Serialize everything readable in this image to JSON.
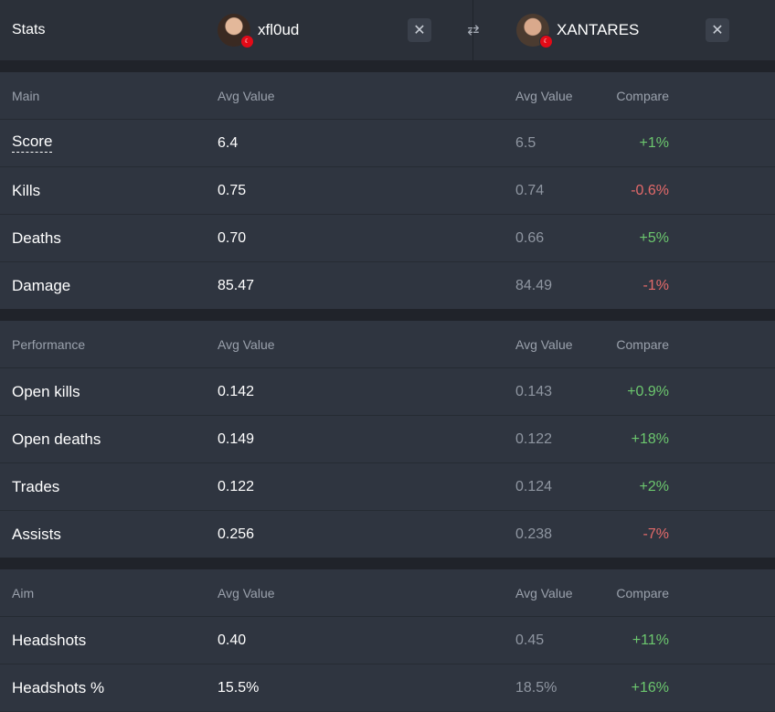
{
  "header": {
    "stats_label": "Stats",
    "player1": {
      "name": "xfl0ud",
      "flag": "☾"
    },
    "player2": {
      "name": "XANTARES",
      "flag": "☾"
    },
    "close_glyph": "✕",
    "swap_glyph": "⇄"
  },
  "sections": [
    {
      "title": "Main",
      "col_avg1": "Avg Value",
      "col_avg2": "Avg Value",
      "col_compare": "Compare",
      "rows": [
        {
          "label": "Score",
          "v1": "6.4",
          "v2": "6.5",
          "compare": "+1%",
          "trend": "pos"
        },
        {
          "label": "Kills",
          "v1": "0.75",
          "v2": "0.74",
          "compare": "-0.6%",
          "trend": "neg"
        },
        {
          "label": "Deaths",
          "v1": "0.70",
          "v2": "0.66",
          "compare": "+5%",
          "trend": "pos"
        },
        {
          "label": "Damage",
          "v1": "85.47",
          "v2": "84.49",
          "compare": "-1%",
          "trend": "neg"
        }
      ]
    },
    {
      "title": "Performance",
      "col_avg1": "Avg Value",
      "col_avg2": "Avg Value",
      "col_compare": "Compare",
      "rows": [
        {
          "label": "Open kills",
          "v1": "0.142",
          "v2": "0.143",
          "compare": "+0.9%",
          "trend": "pos"
        },
        {
          "label": "Open deaths",
          "v1": "0.149",
          "v2": "0.122",
          "compare": "+18%",
          "trend": "pos"
        },
        {
          "label": "Trades",
          "v1": "0.122",
          "v2": "0.124",
          "compare": "+2%",
          "trend": "pos"
        },
        {
          "label": "Assists",
          "v1": "0.256",
          "v2": "0.238",
          "compare": "-7%",
          "trend": "neg"
        }
      ]
    },
    {
      "title": "Aim",
      "col_avg1": "Avg Value",
      "col_avg2": "Avg Value",
      "col_compare": "Compare",
      "rows": [
        {
          "label": "Headshots",
          "v1": "0.40",
          "v2": "0.45",
          "compare": "+11%",
          "trend": "pos"
        },
        {
          "label": "Headshots %",
          "v1": "15.5%",
          "v2": "18.5%",
          "compare": "+16%",
          "trend": "pos"
        }
      ]
    }
  ],
  "colors": {
    "positive": "#6cc76e",
    "negative": "#e46a6a"
  }
}
